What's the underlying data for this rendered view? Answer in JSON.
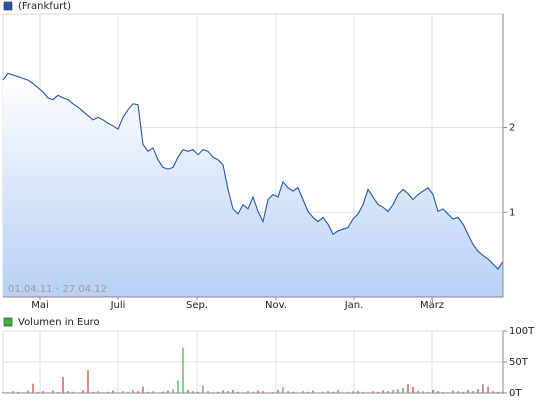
{
  "chart_data": [
    {
      "type": "area",
      "legend": "(Frankfurt)",
      "color": "#2356b0",
      "fill": "#c3d8f7",
      "range_label": "01.04.11 - 27.04.12",
      "values": [
        2.56,
        2.64,
        2.62,
        2.6,
        2.58,
        2.56,
        2.52,
        2.47,
        2.42,
        2.35,
        2.33,
        2.38,
        2.35,
        2.33,
        2.28,
        2.24,
        2.19,
        2.14,
        2.09,
        2.12,
        2.09,
        2.05,
        2.02,
        1.98,
        2.12,
        2.21,
        2.28,
        2.27,
        1.8,
        1.72,
        1.76,
        1.62,
        1.53,
        1.51,
        1.53,
        1.65,
        1.74,
        1.72,
        1.74,
        1.68,
        1.74,
        1.72,
        1.65,
        1.62,
        1.56,
        1.27,
        1.04,
        0.98,
        1.09,
        1.04,
        1.18,
        1.01,
        0.89,
        1.15,
        1.21,
        1.18,
        1.36,
        1.29,
        1.25,
        1.29,
        1.15,
        1.01,
        0.94,
        0.89,
        0.94,
        0.86,
        0.74,
        0.78,
        0.8,
        0.82,
        0.92,
        0.98,
        1.09,
        1.27,
        1.18,
        1.09,
        1.06,
        1.01,
        1.09,
        1.21,
        1.27,
        1.22,
        1.15,
        1.21,
        1.25,
        1.29,
        1.21,
        1.01,
        1.04,
        0.98,
        0.92,
        0.94,
        0.86,
        0.74,
        0.62,
        0.54,
        0.49,
        0.45,
        0.39,
        0.33,
        0.42
      ],
      "xlim": [
        0,
        100
      ],
      "xticks": [
        {
          "value": 7.4,
          "label": "Mai"
        },
        {
          "value": 23,
          "label": "Juli"
        },
        {
          "value": 38.8,
          "label": "Sep."
        },
        {
          "value": 54.6,
          "label": "Nov."
        },
        {
          "value": 70.2,
          "label": "Jan."
        },
        {
          "value": 85.8,
          "label": "März"
        }
      ],
      "ylim": [
        0,
        3.34
      ],
      "yticks": [
        1,
        2
      ],
      "grid": true
    },
    {
      "type": "bar",
      "legend": "Volumen in Euro",
      "color": "#3cb043",
      "up_color": "#3cb043",
      "down_color": "#d23a3a",
      "values": [
        2,
        1,
        3,
        2,
        1,
        4,
        15,
        2,
        3,
        1,
        4,
        2,
        26,
        3,
        2,
        1,
        5,
        37,
        2,
        3,
        1,
        2,
        4,
        1,
        3,
        2,
        5,
        3,
        10,
        2,
        3,
        1,
        2,
        4,
        6,
        20,
        73,
        5,
        3,
        2,
        12,
        3,
        1,
        2,
        4,
        3,
        5,
        2,
        1,
        3,
        2,
        4,
        3,
        1,
        2,
        5,
        10,
        3,
        2,
        1,
        3,
        2,
        4,
        1,
        2,
        3,
        2,
        5,
        1,
        2,
        3,
        4,
        2,
        1,
        3,
        2,
        4,
        3,
        5,
        6,
        8,
        14,
        10,
        4,
        3,
        2,
        5,
        3,
        2,
        1,
        4,
        3,
        2,
        5,
        3,
        6,
        14,
        10,
        3,
        2,
        4
      ],
      "ylim": [
        0,
        100
      ],
      "yticks": [
        {
          "value": 0,
          "label": "0T"
        },
        {
          "value": 50,
          "label": "50T"
        },
        {
          "value": 100,
          "label": "100T"
        }
      ],
      "grid": true
    }
  ]
}
